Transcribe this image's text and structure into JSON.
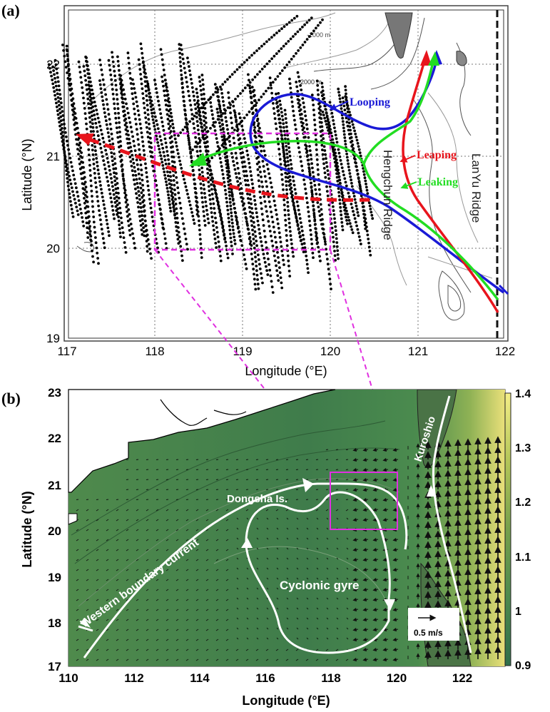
{
  "panel_a": {
    "label": "(a)",
    "xlabel": "Longitude (°E)",
    "ylabel": "Latitude (°N)",
    "x_ticks": [
      "117",
      "118",
      "119",
      "120",
      "121",
      "122"
    ],
    "y_ticks": [
      "19",
      "20",
      "21",
      "22"
    ],
    "xlim": [
      117,
      122
    ],
    "ylim": [
      19,
      22.5
    ],
    "depth_labels": [
      "-1000 m",
      "-2000 m"
    ],
    "paths": {
      "looping": {
        "label": "Looping",
        "color": "#1a1ad6"
      },
      "leaping": {
        "label": "Leaping",
        "color": "#e8141c"
      },
      "leaking": {
        "label": "Leaking",
        "color": "#22dd22"
      }
    },
    "ridges": [
      "Hengchun Ridge",
      "LanYu Ridge"
    ],
    "box": {
      "lon": [
        118,
        120
      ],
      "lat": [
        20,
        21.25
      ],
      "color": "#e030e0"
    }
  },
  "panel_b": {
    "label": "(b)",
    "xlabel": "Longitude (°E)",
    "ylabel": "Latitude (°N)",
    "x_ticks": [
      "110",
      "112",
      "114",
      "116",
      "118",
      "120",
      "122"
    ],
    "y_ticks": [
      "17",
      "18",
      "19",
      "20",
      "21",
      "22",
      "23"
    ],
    "xlim": [
      110,
      123.3
    ],
    "ylim": [
      17,
      23
    ],
    "colorbar": {
      "ticks": [
        "0.9",
        "1",
        "1.1",
        "1.2",
        "1.3",
        "1.4"
      ],
      "min": 0.9,
      "max": 1.4
    },
    "labels": {
      "kuroshio": "Kuroshio",
      "dongsha": "Dongsha Is.",
      "wbc": "Western boundary current",
      "gyre": "Cyclonic gyre",
      "scale": "0.5 m/s"
    },
    "box": {
      "lon": [
        118,
        120
      ],
      "lat": [
        20,
        21.25
      ],
      "color": "#e030e0"
    }
  }
}
